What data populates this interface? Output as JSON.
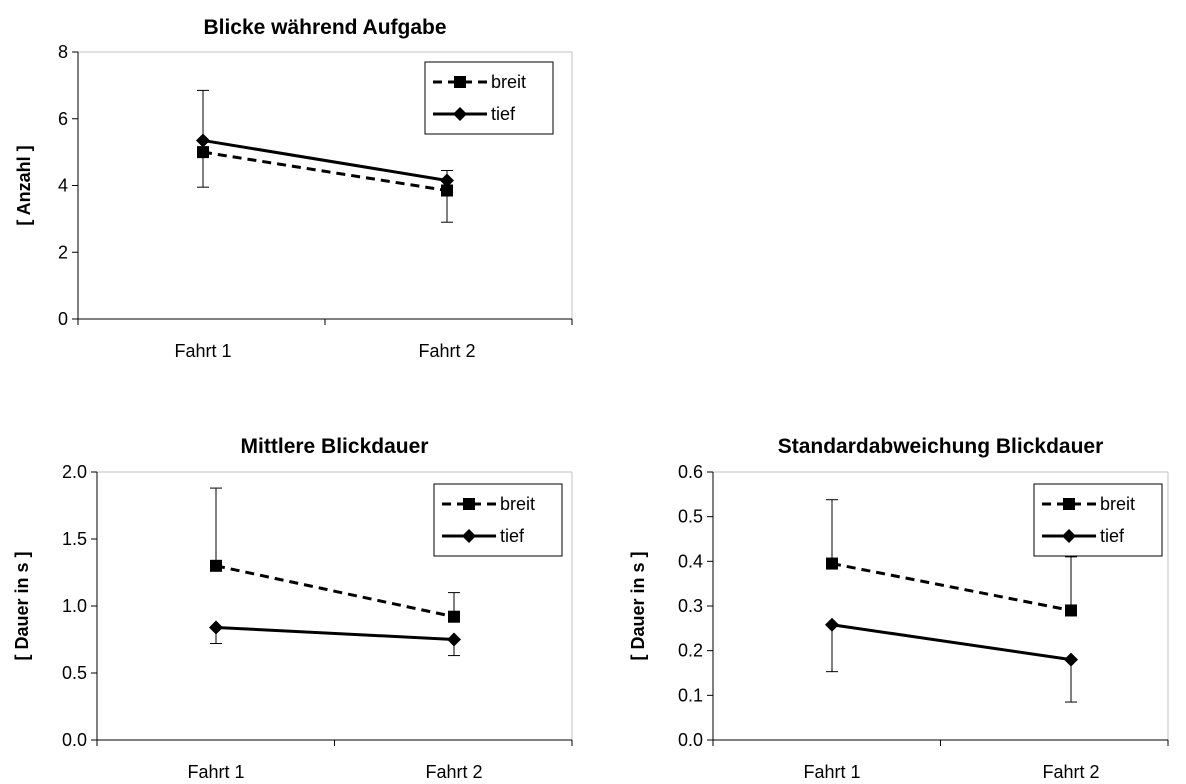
{
  "chart_data": [
    {
      "type": "line",
      "title": "Blicke während Aufgabe",
      "xlabel": "",
      "ylabel": "[ Anzahl ]",
      "categories": [
        "Fahrt 1",
        "Fahrt 2"
      ],
      "ylim": [
        0,
        8
      ],
      "yticks": [
        "0",
        "2",
        "4",
        "6",
        "8"
      ],
      "yvalues": [
        0,
        2,
        4,
        6,
        8
      ],
      "legend_position": "top-right",
      "series": [
        {
          "name": "breit",
          "values": [
            5.0,
            3.85
          ],
          "error_low": [
            3.95,
            2.9
          ],
          "style": "dashed",
          "marker": "square"
        },
        {
          "name": "tief",
          "values": [
            5.35,
            4.15
          ],
          "error_high": [
            6.85,
            4.45
          ],
          "style": "solid",
          "marker": "diamond"
        }
      ]
    },
    {
      "type": "line",
      "title": "Mittlere Blickdauer",
      "xlabel": "",
      "ylabel": "[ Dauer in s ]",
      "categories": [
        "Fahrt 1",
        "Fahrt 2"
      ],
      "ylim": [
        0,
        2.0
      ],
      "yticks": [
        "0.0",
        "0.5",
        "1.0",
        "1.5",
        "2.0"
      ],
      "yvalues": [
        0,
        0.5,
        1.0,
        1.5,
        2.0
      ],
      "legend_position": "top-right",
      "series": [
        {
          "name": "breit",
          "values": [
            1.3,
            0.92
          ],
          "error_high": [
            1.88,
            1.1
          ],
          "style": "dashed",
          "marker": "square"
        },
        {
          "name": "tief",
          "values": [
            0.84,
            0.75
          ],
          "error_low": [
            0.72,
            0.63
          ],
          "style": "solid",
          "marker": "diamond"
        }
      ]
    },
    {
      "type": "line",
      "title": "Standardabweichung Blickdauer",
      "xlabel": "",
      "ylabel": "[ Dauer in s ]",
      "categories": [
        "Fahrt 1",
        "Fahrt 2"
      ],
      "ylim": [
        0,
        0.6
      ],
      "yticks": [
        "0.0",
        "0.1",
        "0.2",
        "0.3",
        "0.4",
        "0.5",
        "0.6"
      ],
      "yvalues": [
        0,
        0.1,
        0.2,
        0.3,
        0.4,
        0.5,
        0.6
      ],
      "legend_position": "top-right",
      "series": [
        {
          "name": "breit",
          "values": [
            0.395,
            0.29
          ],
          "error_high": [
            0.538,
            0.41
          ],
          "style": "dashed",
          "marker": "square"
        },
        {
          "name": "tief",
          "values": [
            0.258,
            0.18
          ],
          "error_low": [
            0.153,
            0.085
          ],
          "style": "solid",
          "marker": "diamond"
        }
      ]
    }
  ]
}
